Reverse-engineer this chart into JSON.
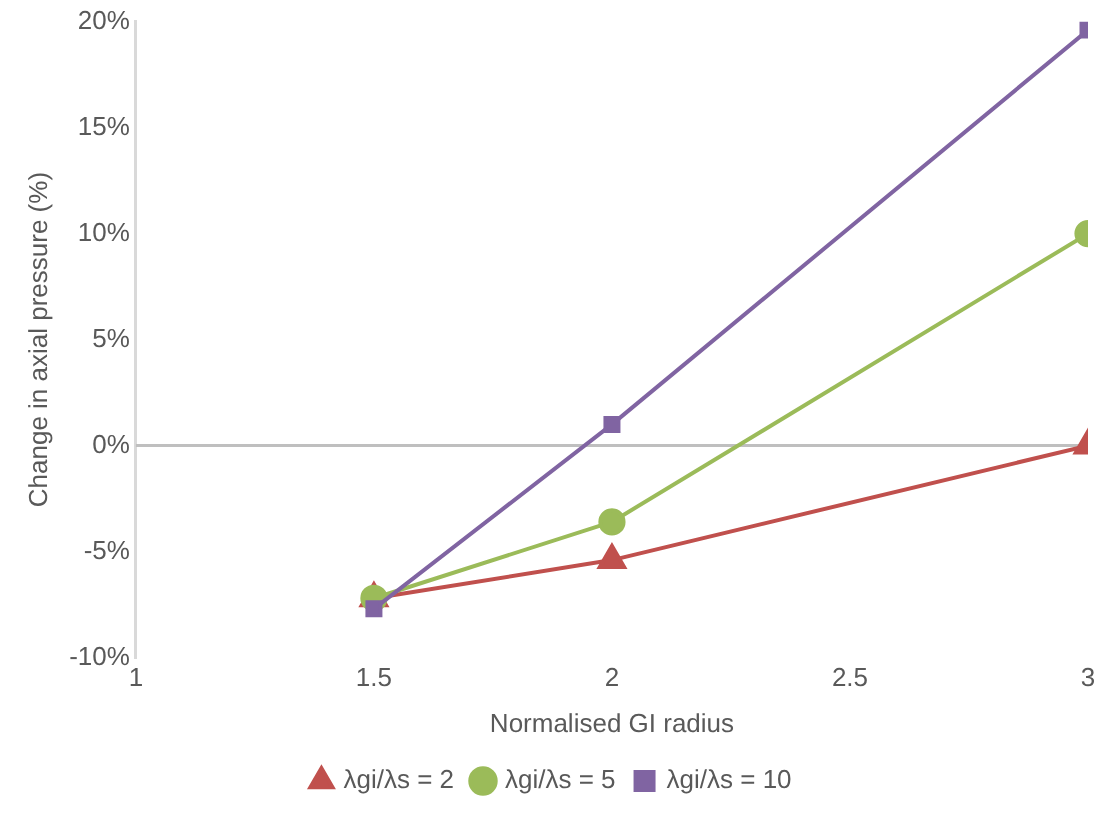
{
  "chart_data": {
    "type": "line",
    "xlabel": "Normalised GI radius",
    "ylabel": "Change in axial pressure (%)",
    "x": [
      1.5,
      2,
      3
    ],
    "series": [
      {
        "name": "λgi/λs = 2",
        "color": "#c0504d",
        "marker": "triangle",
        "values": [
          -7.2,
          -5.4,
          0
        ]
      },
      {
        "name": "λgi/λs = 5",
        "color": "#9bbb59",
        "marker": "circle",
        "values": [
          -7.2,
          -3.6,
          10
        ]
      },
      {
        "name": "λgi/λs = 10",
        "color": "#8064a2",
        "marker": "square",
        "values": [
          -7.7,
          1,
          19.6
        ]
      }
    ],
    "xlim": [
      1,
      3
    ],
    "xticks": [
      1,
      1.5,
      2,
      2.5,
      3
    ],
    "ylim": [
      -10,
      20
    ],
    "yticks": [
      {
        "value": -10,
        "label": "-10%"
      },
      {
        "value": -5,
        "label": "-5%"
      },
      {
        "value": 0,
        "label": "0%"
      },
      {
        "value": 5,
        "label": "5%"
      },
      {
        "value": 10,
        "label": "10%"
      },
      {
        "value": 15,
        "label": "15%"
      },
      {
        "value": 20,
        "label": "20%"
      }
    ],
    "ref_lines": [
      {
        "axis": "y",
        "value": 0,
        "color": "#bfbfbf"
      }
    ],
    "grid": false,
    "legend": "bottom",
    "line_style": "solid"
  }
}
